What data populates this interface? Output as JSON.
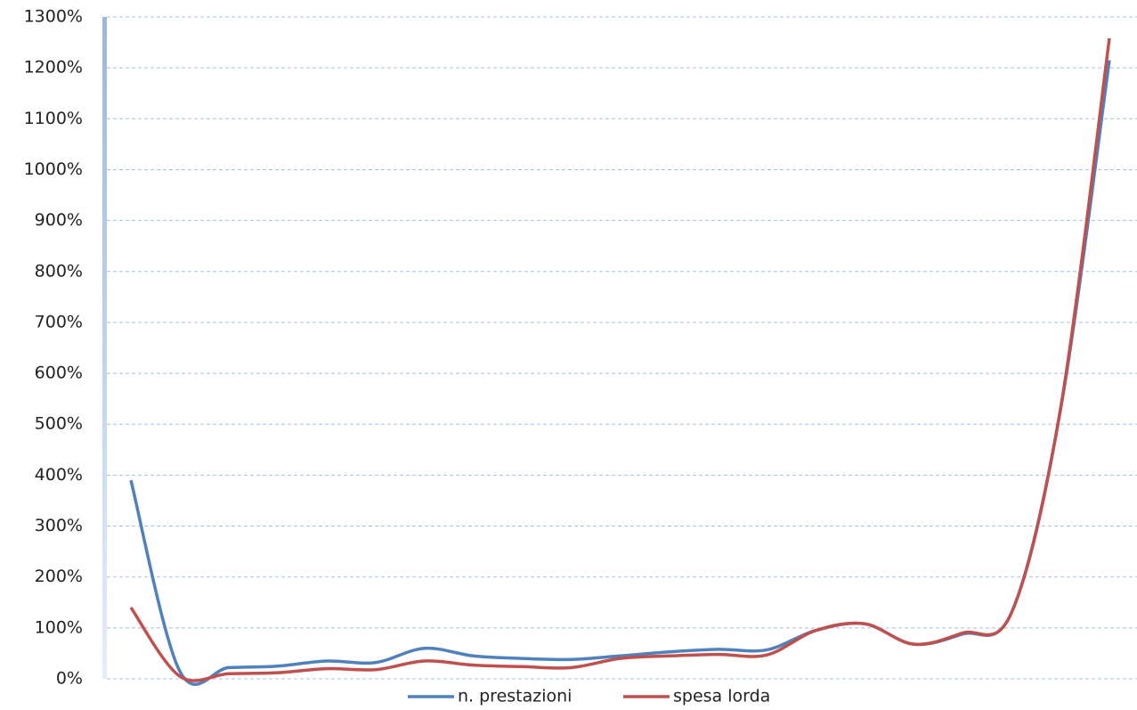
{
  "chart_data": {
    "type": "line",
    "categories": [
      null,
      null,
      null,
      null,
      null,
      null,
      null,
      null,
      null,
      null,
      null,
      null,
      null,
      null,
      null,
      null,
      null,
      null,
      null,
      null,
      null
    ],
    "series": [
      {
        "name": "n. prestazioni",
        "color": "#4f81bd",
        "values": [
          390,
          15,
          22,
          25,
          35,
          32,
          60,
          45,
          40,
          38,
          45,
          53,
          58,
          57,
          95,
          108,
          68,
          88,
          130,
          528,
          1215
        ]
      },
      {
        "name": "spesa lorda",
        "color": "#c0504d",
        "values": [
          140,
          5,
          10,
          12,
          20,
          18,
          35,
          27,
          24,
          22,
          40,
          45,
          48,
          47,
          95,
          108,
          68,
          90,
          130,
          530,
          1258
        ]
      }
    ],
    "ylim": [
      0,
      1300
    ],
    "yticks": [
      {
        "value": 0,
        "label": "0%"
      },
      {
        "value": 100,
        "label": "100%"
      },
      {
        "value": 200,
        "label": "200%"
      },
      {
        "value": 300,
        "label": "300%"
      },
      {
        "value": 400,
        "label": "400%"
      },
      {
        "value": 500,
        "label": "500%"
      },
      {
        "value": 600,
        "label": "600%"
      },
      {
        "value": 700,
        "label": "700%"
      },
      {
        "value": 800,
        "label": "800%"
      },
      {
        "value": 900,
        "label": "900%"
      },
      {
        "value": 1000,
        "label": "1000%"
      },
      {
        "value": 1100,
        "label": "1100%"
      },
      {
        "value": 1200,
        "label": "1200%"
      },
      {
        "value": 1300,
        "label": "1300%"
      }
    ],
    "grid": true,
    "legend": "bottom"
  }
}
